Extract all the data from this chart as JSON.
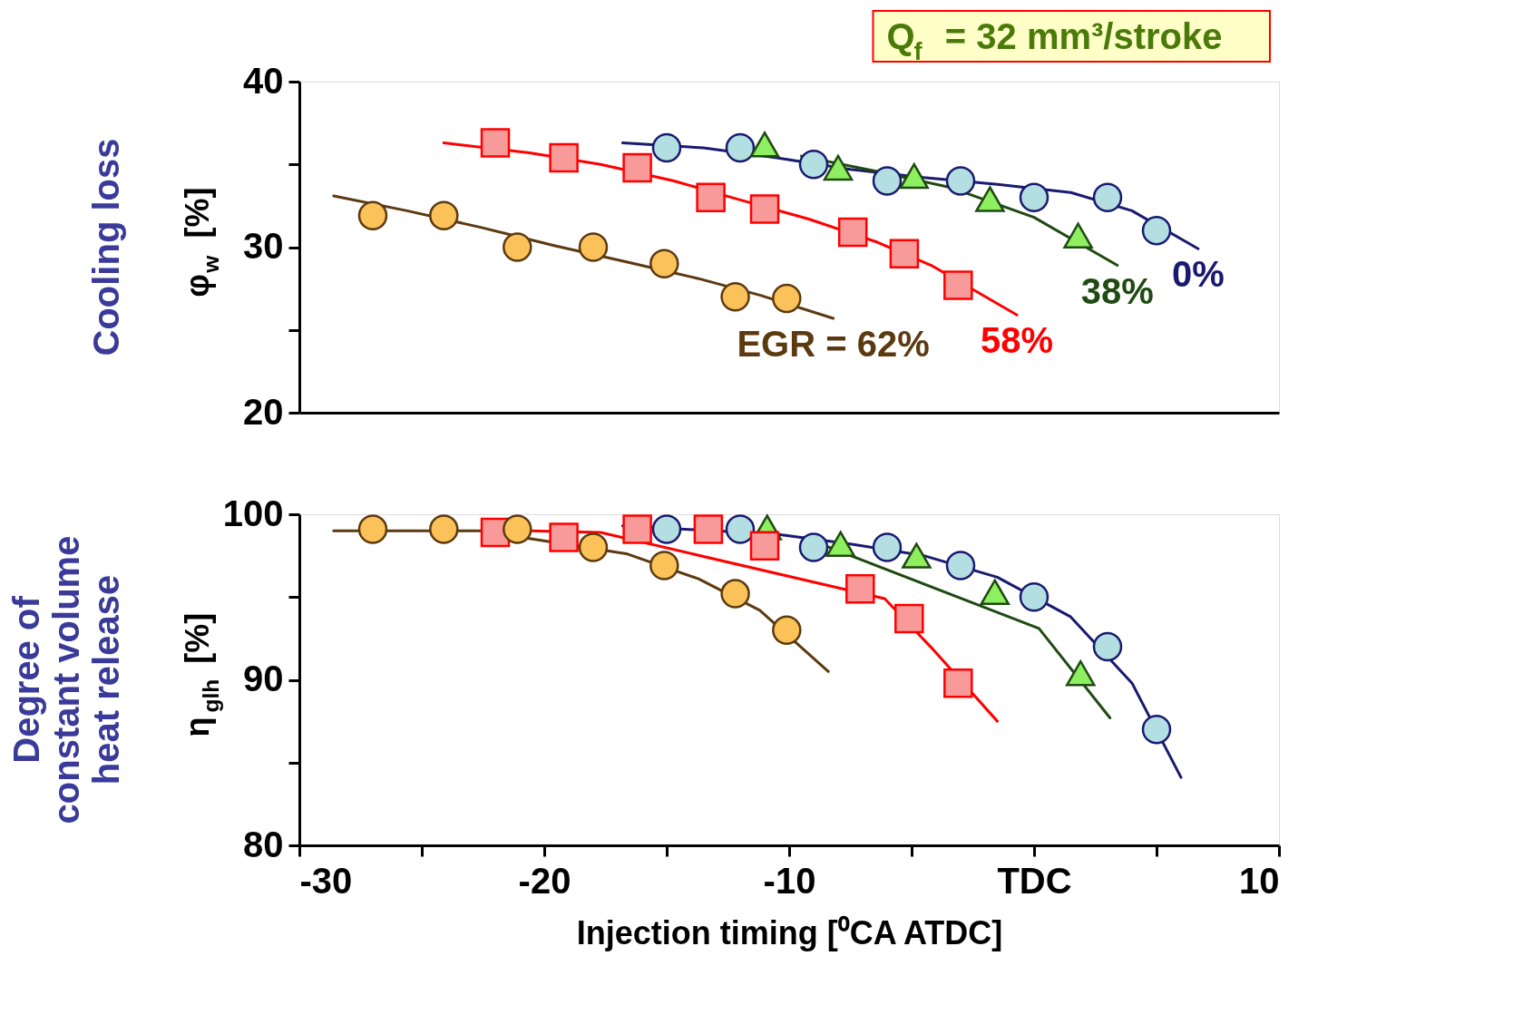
{
  "chart_data": [
    {
      "type": "line",
      "title": "Cooling loss",
      "ylabel": "φ$_{w}$ [%]",
      "xlim": [
        -30,
        10
      ],
      "ylim": [
        20,
        40
      ],
      "yticks": [
        20,
        {
          "value": 25,
          "label": null
        },
        30,
        {
          "value": 35,
          "label": null
        },
        40
      ],
      "tick_labels": "y",
      "grid": false,
      "line_style": "solid",
      "annotations": [
        "Q$_{f}$ = 32 mm³/stroke"
      ],
      "series": [
        {
          "type": "line",
          "color": "#1a1a70",
          "x": [
            -16.8,
            -13.5,
            -10.5,
            -7.5,
            -4.5,
            -1.5,
            1.5,
            4,
            6.7
          ],
          "values": [
            36.3,
            36.0,
            35.4,
            34.7,
            34.2,
            33.8,
            33.3,
            32.2,
            29.9
          ]
        },
        {
          "type": "scatter",
          "name": "0%",
          "color": "#b3dfe3",
          "marker": "circle",
          "x": [
            -15,
            -12,
            -9,
            -6,
            -3,
            0,
            3,
            5
          ],
          "values": [
            36,
            36,
            35,
            34,
            34,
            33,
            33,
            31
          ]
        },
        {
          "type": "line",
          "color": "#1f4a12",
          "x": [
            -9.5,
            -6.5,
            -3.4,
            0,
            3.4
          ],
          "values": [
            35.5,
            34.6,
            33.6,
            31.8,
            28.9
          ]
        },
        {
          "type": "scatter",
          "name": "38%",
          "color": "#8ef060",
          "marker": "triangle",
          "x": [
            -11,
            -8,
            -4.9,
            -1.8,
            1.8
          ],
          "values": [
            36.2,
            34.8,
            34.3,
            32.9,
            30.7
          ]
        },
        {
          "type": "line",
          "color": "#ff0000",
          "x": [
            -24.1,
            -20.6,
            -17.7,
            -14.7,
            -12.1,
            -9.2,
            -6.4,
            -4.2,
            -0.7
          ],
          "values": [
            36.3,
            35.7,
            35,
            34.0,
            32.9,
            31.7,
            30.3,
            28.9,
            25.9
          ]
        },
        {
          "type": "scatter",
          "name": "58%",
          "color": "#f99a9a",
          "marker": "square",
          "x": [
            -22,
            -19.2,
            -16.2,
            -13.2,
            -11,
            -7.4,
            -5.3,
            -3.1
          ],
          "values": [
            36.3,
            35.4,
            34.8,
            33,
            32.3,
            30.9,
            29.6,
            27.7
          ]
        },
        {
          "type": "line",
          "color": "#5c3a10",
          "x": [
            -28.6,
            -25.6,
            -22.6,
            -19.6,
            -16.6,
            -13.7,
            -11.2,
            -8.2
          ],
          "values": [
            33.1,
            32.2,
            31.2,
            30.1,
            29.1,
            28.1,
            27.1,
            25.7
          ]
        },
        {
          "type": "scatter",
          "name": "EGR = 62%",
          "color": "#fbc25a",
          "marker": "circle",
          "x": [
            -27,
            -24.1,
            -21.1,
            -18,
            -15.1,
            -12.2,
            -10.1
          ],
          "values": [
            31.9,
            31.9,
            30,
            30,
            29,
            27,
            26.9
          ]
        }
      ]
    },
    {
      "type": "line",
      "title": "Degree of constant volume heat release",
      "ylabel": "η$_{glh}$ [%]",
      "xlabel": "Injection timing [⁰CA ATDC]",
      "xlim": [
        -30,
        10
      ],
      "ylim": [
        80,
        100
      ],
      "yticks": [
        80,
        {
          "value": 85,
          "label": null
        },
        90,
        {
          "value": 95,
          "label": null
        },
        100
      ],
      "xticks": [
        -30,
        {
          "value": -25,
          "label": null
        },
        -20,
        {
          "value": -15,
          "label": null
        },
        -10,
        {
          "value": -5,
          "label": null
        },
        {
          "value": 0,
          "label": "TDC"
        },
        {
          "value": 5,
          "label": null
        },
        10
      ],
      "grid": false,
      "line_style": "solid",
      "series": [
        {
          "type": "line",
          "color": "#1a1a70",
          "x": [
            -16.8,
            -10.5,
            -7.5,
            -4.5,
            -1.5,
            1.5,
            4,
            6
          ],
          "values": [
            99.3,
            98.8,
            98.2,
            97.5,
            96.2,
            93.8,
            89.8,
            84.1
          ]
        },
        {
          "type": "scatter",
          "color": "#b3dfe3",
          "marker": "circle",
          "x": [
            -15,
            -12,
            -9,
            -6,
            -3,
            0,
            3,
            5
          ],
          "values": [
            99.1,
            99.1,
            98,
            98,
            96.9,
            95,
            92,
            87
          ]
        },
        {
          "type": "line",
          "color": "#1f4a12",
          "x": [
            -9.4,
            0.2,
            3.1
          ],
          "values": [
            98.6,
            93.1,
            87.7
          ]
        },
        {
          "type": "scatter",
          "color": "#8ef060",
          "marker": "triangle",
          "x": [
            -10.9,
            -7.9,
            -4.8,
            -1.6,
            1.9
          ],
          "values": [
            99.2,
            98.2,
            97.5,
            95.3,
            90.4
          ]
        },
        {
          "type": "line",
          "color": "#ff0000",
          "x": [
            -20.6,
            -17.7,
            -6.1,
            -4.1,
            -1.5
          ],
          "values": [
            99,
            98.9,
            94.9,
            91.8,
            87.5
          ]
        },
        {
          "type": "scatter",
          "color": "#f99a9a",
          "marker": "square",
          "x": [
            -22,
            -19.2,
            -16.2,
            -13.3,
            -11,
            -7.1,
            -5.1,
            -3.1
          ],
          "values": [
            98.9,
            98.6,
            99.1,
            99.1,
            98.1,
            95.5,
            93.7,
            89.8
          ]
        },
        {
          "type": "line",
          "color": "#5c3a10",
          "x": [
            -28.6,
            -25.6,
            -22.6,
            -16.6,
            -13.7,
            -11.2,
            -8.4
          ],
          "values": [
            99,
            99,
            99,
            97.6,
            96.1,
            94.2,
            90.5
          ]
        },
        {
          "type": "scatter",
          "color": "#fbc25a",
          "marker": "circle",
          "x": [
            -27,
            -24.1,
            -21.1,
            -18,
            -15.1,
            -12.2,
            -10.1
          ],
          "values": [
            99.1,
            99.1,
            99.1,
            98,
            96.9,
            95.2,
            93
          ]
        }
      ]
    }
  ]
}
